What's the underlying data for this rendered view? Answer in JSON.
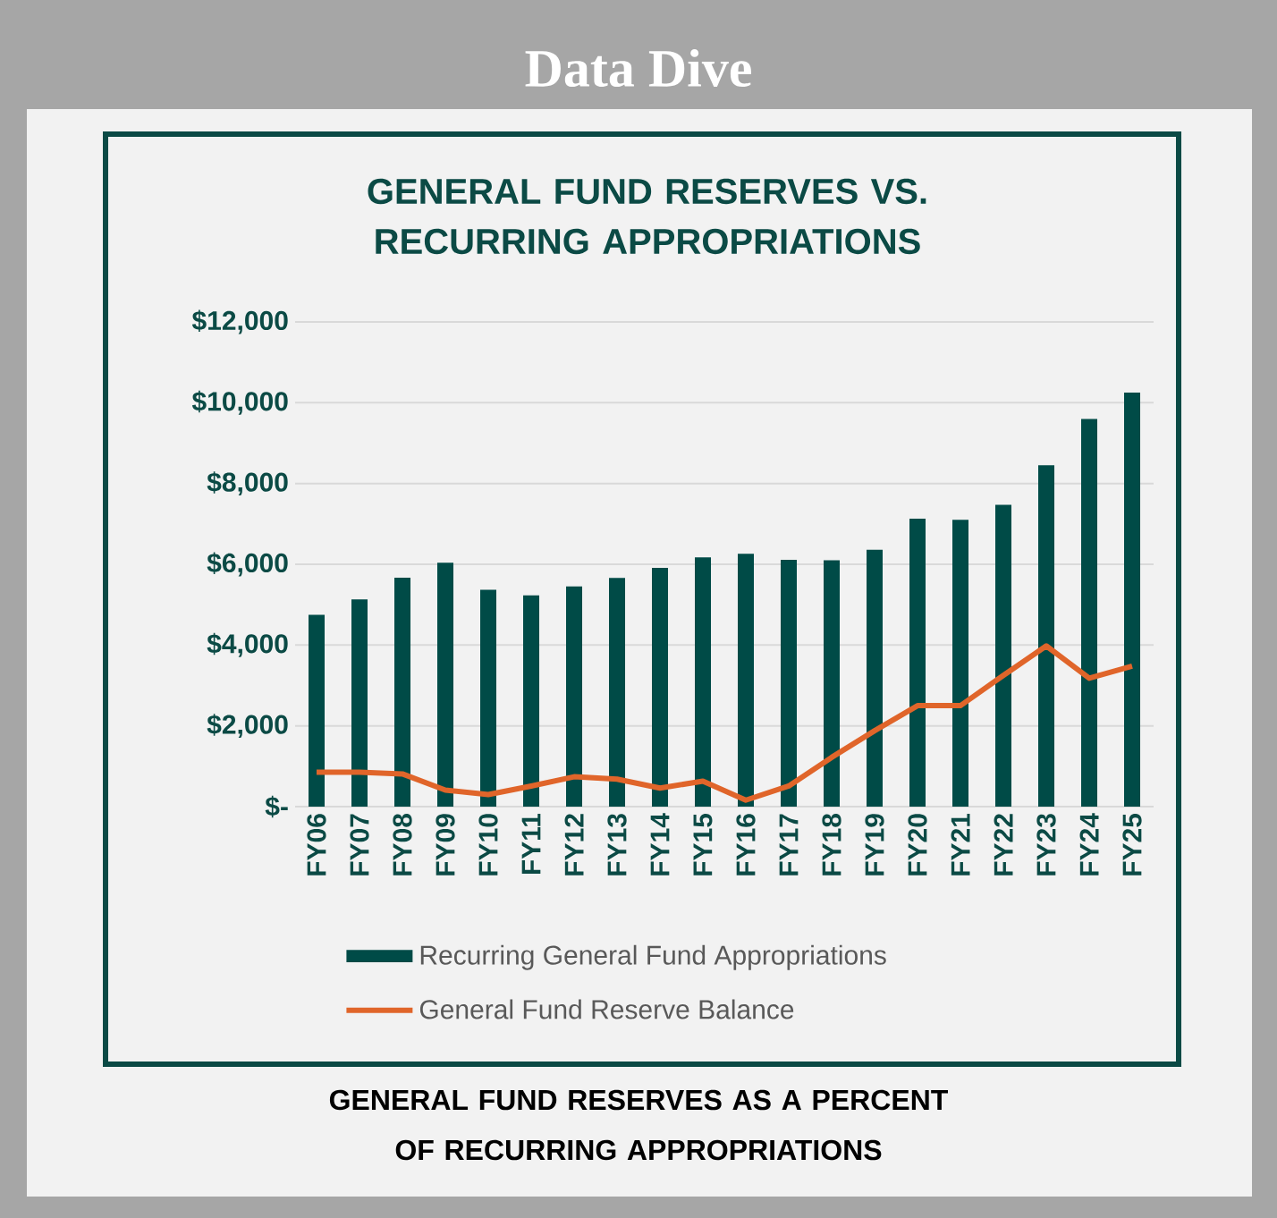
{
  "chart_data": {
    "type": "bar",
    "title": "GENERAL FUND RESERVES VS. RECURRING APPROPRIATIONS",
    "annotations": [
      "Data Dive",
      "GENERAL FUND RESERVES AS A PERCENT OF RECURRING APPROPRIATIONS"
    ],
    "categories": [
      "FY06",
      "FY07",
      "FY08",
      "FY09",
      "FY10",
      "FY11",
      "FY12",
      "FY13",
      "FY14",
      "FY15",
      "FY16",
      "FY17",
      "FY18",
      "FY19",
      "FY20",
      "FY21",
      "FY22",
      "FY23",
      "FY24",
      "FY25"
    ],
    "series": [
      {
        "name": "Recurring General Fund Appropriations",
        "color": "#004b47",
        "values": [
          4750,
          5130,
          5670,
          6040,
          5370,
          5230,
          5450,
          5660,
          5910,
          6170,
          6260,
          6110,
          6100,
          6360,
          7130,
          7100,
          7470,
          8450,
          9600,
          10250
        ]
      },
      {
        "name": "General Fund Reserve Balance",
        "type": "line",
        "color": "#e0652a",
        "values": [
          850,
          850,
          810,
          410,
          300,
          510,
          740,
          680,
          460,
          630,
          160,
          510,
          1220,
          1880,
          2500,
          2500,
          3250,
          3980,
          3180,
          3480
        ]
      }
    ],
    "ylim": [
      0,
      12000
    ],
    "yticks": [
      {
        "value": 0,
        "label": "$-"
      },
      {
        "value": 2000,
        "label": "$2,000"
      },
      {
        "value": 4000,
        "label": "$4,000"
      },
      {
        "value": 6000,
        "label": "$6,000"
      },
      {
        "value": 8000,
        "label": "$8,000"
      },
      {
        "value": 10000,
        "label": "$10,000"
      },
      {
        "value": 12000,
        "label": "$12,000"
      }
    ],
    "grid": "y",
    "legend": "bottom",
    "marker": "none",
    "line_style": "solid"
  }
}
